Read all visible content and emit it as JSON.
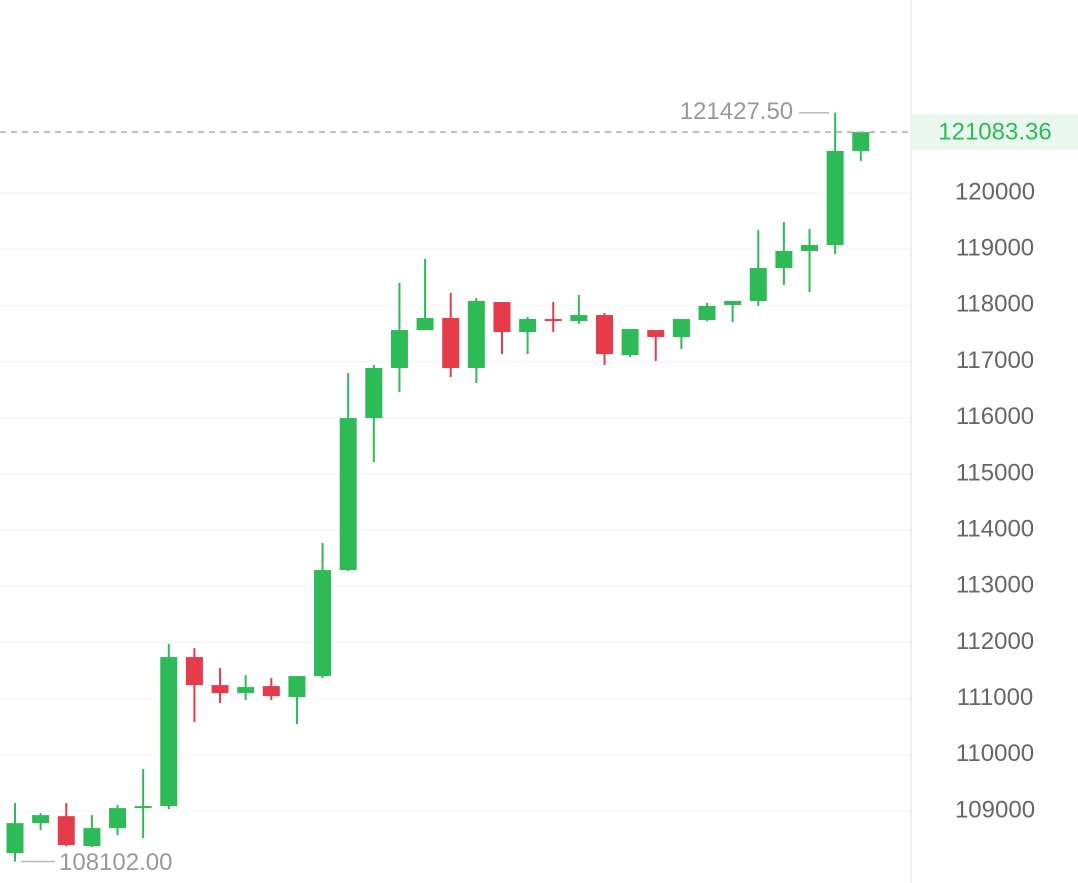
{
  "chart_data": {
    "type": "candlestick",
    "colors": {
      "up": "#2ebb57",
      "down": "#e63b4b"
    },
    "open": [
      108252,
      108786,
      108910,
      108376,
      108697,
      109071,
      109089,
      111741,
      111242,
      111100,
      111224,
      111029,
      111403,
      113289,
      115995,
      116885,
      117561,
      117775,
      116885,
      118060,
      117526,
      117757,
      117722,
      117828,
      117116,
      117561,
      117437,
      117740,
      118007,
      118078,
      118665,
      118968,
      119074,
      120748
    ],
    "high": [
      109142,
      108964,
      109142,
      108928,
      109107,
      109747,
      111972,
      111901,
      111545,
      111420,
      111367,
      111403,
      113770,
      116796,
      116938,
      118398,
      118825,
      118220,
      118131,
      118060,
      117793,
      118060,
      118184,
      117864,
      117579,
      117561,
      117757,
      118042,
      118078,
      119341,
      119484,
      119359,
      121427.5,
      121083.36
    ],
    "low": [
      108102,
      108661,
      108376,
      108358,
      108572,
      108519,
      109035,
      110584,
      110922,
      110975,
      110975,
      110548,
      111367,
      113271,
      115212,
      116458,
      117561,
      116725,
      116618,
      117134,
      117134,
      117526,
      117668,
      116938,
      117081,
      117010,
      117223,
      117722,
      117704,
      117989,
      118362,
      118238,
      118914,
      120570
    ],
    "close": [
      108786,
      108928,
      108394,
      108697,
      109053,
      109089,
      111741,
      111242,
      111100,
      111207,
      111046,
      111403,
      113289,
      115995,
      116885,
      117561,
      117775,
      116885,
      118078,
      117526,
      117757,
      117722,
      117828,
      117134,
      117579,
      117437,
      117757,
      117989,
      118078,
      118665,
      118968,
      119074,
      120748,
      121083.36
    ],
    "max_label": {
      "value": 121427.5,
      "label": "121427.50"
    },
    "min_label": {
      "value": 108102,
      "label": "108102.00"
    },
    "last_price": {
      "value": 121083.36,
      "label": "121083.36"
    },
    "ylim": [
      107720,
      123435
    ],
    "yticks": [
      109000,
      110000,
      111000,
      112000,
      113000,
      114000,
      115000,
      116000,
      117000,
      118000,
      119000,
      120000
    ],
    "grid": true
  }
}
